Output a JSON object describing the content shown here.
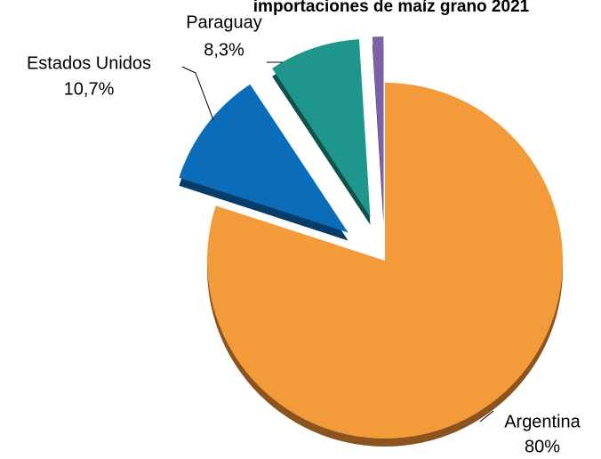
{
  "chart_data": {
    "type": "pie",
    "title": "importaciones de maíz grano 2021",
    "categories": [
      "Argentina",
      "Estados Unidos",
      "Paraguay",
      null
    ],
    "values": [
      80,
      10.7,
      8.3,
      1
    ],
    "value_labels": [
      "80%",
      "10,7%",
      "8,3%",
      null
    ],
    "colors": [
      "#f39a3a",
      "#0b6dba",
      "#1f968b",
      "#7d62a8"
    ],
    "shadow_colors": [
      "#8a5320",
      "#063c66",
      "#0f514b",
      "#45356a"
    ],
    "exploded": [
      false,
      true,
      true,
      true
    ]
  }
}
